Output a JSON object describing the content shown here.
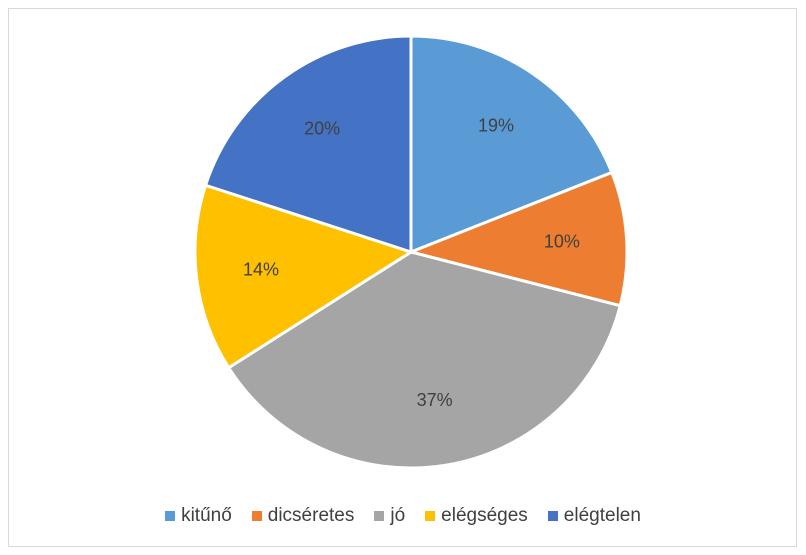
{
  "chart_data": {
    "type": "pie",
    "title": "",
    "categories": [
      "kitűnő",
      "dicséretes",
      "jó",
      "elégséges",
      "elégtelen"
    ],
    "values": [
      19,
      10,
      37,
      14,
      20
    ],
    "labels": [
      "19%",
      "10%",
      "37%",
      "14%",
      "20%"
    ],
    "colors": [
      "#5B9BD5",
      "#ED7D31",
      "#A5A5A5",
      "#FFC000",
      "#4472C4"
    ],
    "legend_position": "bottom",
    "start_angle_deg": 0,
    "direction": "clockwise"
  }
}
